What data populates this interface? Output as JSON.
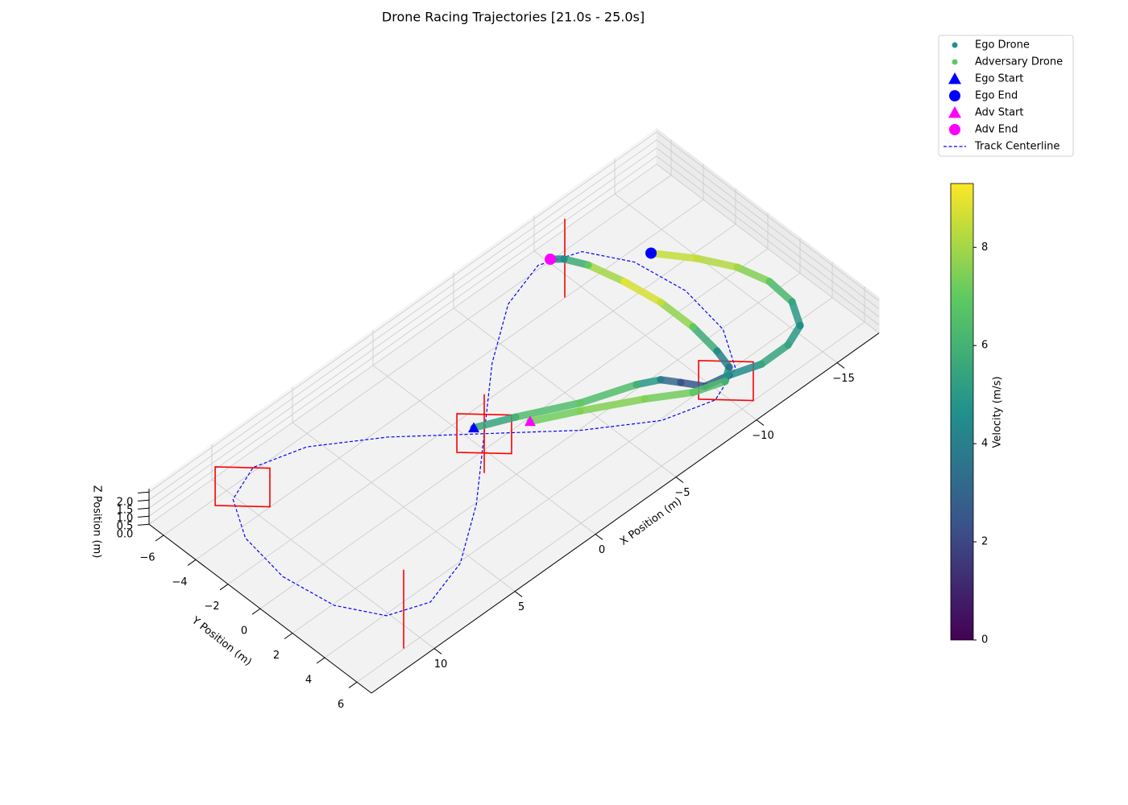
{
  "chart_data": {
    "type": "scatter3d",
    "title": "Drone Racing Trajectories [21.0s - 25.0s]",
    "xlabel": "X Position (m)",
    "ylabel": "Y Position (m)",
    "zlabel": "Z Position (m)",
    "xlim": [
      -17.6,
      13.9
    ],
    "ylim": [
      -6.9,
      6.9
    ],
    "zlim": [
      0,
      2.2
    ],
    "xticks": [
      {
        "value": -15,
        "label": "−15"
      },
      {
        "value": -10,
        "label": "−10"
      },
      {
        "value": -5,
        "label": "−5"
      },
      0,
      5,
      10
    ],
    "yticks": [
      {
        "value": -6,
        "label": "−6"
      },
      {
        "value": -4,
        "label": "−4"
      },
      {
        "value": -2,
        "label": "−2"
      },
      0,
      2,
      4,
      6
    ],
    "zticks": [
      {
        "value": 0,
        "label": "0.0"
      },
      {
        "value": 0.5,
        "label": "0.5"
      },
      {
        "value": 1,
        "label": "1.0"
      },
      {
        "value": 1.5,
        "label": "1.5"
      },
      {
        "value": 2,
        "label": "2.0"
      }
    ],
    "grid": true,
    "legend": "upper right",
    "series": [
      {
        "name": "Ego Drone",
        "color": "#21918c",
        "start": {
          "name": "Ego Start",
          "color": "#0000ff"
        },
        "end": {
          "name": "Ego End",
          "color": "#0000ff"
        },
        "x": [
          0.09,
          -1.71,
          -4.38,
          -6.96,
          -7.94,
          -8.47,
          -9.09,
          -10.33,
          -11.83,
          -13.49,
          -14.7,
          -15.45,
          -15.58,
          -15.15,
          -14.23,
          -12.98
        ],
        "y": [
          -0.56,
          0.24,
          1.58,
          2.49,
          3.01,
          3.73,
          4.62,
          4.87,
          5.37,
          5.36,
          4.9,
          3.65,
          2.12,
          0.55,
          -1.03,
          -2.63
        ],
        "z": [
          1,
          1,
          1,
          1,
          1,
          1,
          1,
          1,
          1,
          1,
          1,
          1,
          1,
          1,
          1,
          1
        ],
        "velocity": [
          5,
          6,
          7,
          6,
          4,
          2.5,
          2.5,
          3.5,
          5.5,
          5.5,
          4.5,
          5.5,
          7,
          8,
          8.5,
          8.5
        ]
      },
      {
        "name": "Adversary Drone",
        "color": "#5ec962",
        "start": {
          "name": "Adv Start",
          "color": "#ff00ff"
        },
        "end": {
          "name": "Adv End",
          "color": "#ff00ff"
        },
        "x": [
          -1.99,
          -4.04,
          -6.61,
          -8.44,
          -9.94,
          -10.67,
          -10.96,
          -11.21,
          -11.21,
          -10.92,
          -10.46,
          -9.94,
          -9.49
        ],
        "y": [
          0.86,
          1.91,
          3.34,
          4.51,
          5.01,
          4.53,
          3.49,
          1.74,
          -0.26,
          -2.22,
          -4.01,
          -4.99,
          -5.39
        ],
        "z": [
          1,
          1,
          1,
          1,
          1,
          1,
          1,
          1,
          1,
          1,
          1,
          1,
          1
        ],
        "velocity": [
          7,
          7.5,
          7.5,
          7,
          6,
          3.5,
          4.5,
          7,
          8.5,
          9,
          7,
          4.5,
          4
        ]
      }
    ],
    "centerline": {
      "name": "Track Centerline",
      "color": "#0000ff",
      "x": [
        12.5,
        12.07,
        10.83,
        8.84,
        6.25,
        3.24,
        0,
        -3.24,
        -6.25,
        -8.84,
        -10.83,
        -12.07,
        -12.5,
        -12.07,
        -10.83,
        -8.84,
        -6.25,
        -3.24,
        0,
        3.24,
        6.25,
        8.84,
        10.83,
        12.07,
        12.5
      ],
      "y": [
        0,
        2.75,
        4.76,
        5.5,
        4.76,
        2.75,
        0,
        -2.75,
        -4.76,
        -5.5,
        -4.76,
        -2.75,
        0,
        2.75,
        4.76,
        5.5,
        4.76,
        2.75,
        0,
        -2.75,
        -4.76,
        -5.5,
        -4.76,
        -2.75,
        0
      ],
      "z": [
        1,
        1,
        1,
        1,
        1,
        1,
        1,
        1,
        1,
        1,
        1,
        1,
        1,
        1,
        1,
        1,
        1,
        1,
        1,
        1,
        1,
        1,
        1,
        1,
        1
      ]
    },
    "gates": {
      "color": "#ff0000",
      "size": 2.4,
      "items": [
        {
          "x": 10,
          "y": -5,
          "z": 1,
          "yaw_deg": 135
        },
        {
          "x": 10,
          "y": 5,
          "z": 1,
          "yaw_deg": 45
        },
        {
          "x": 0,
          "y": 0,
          "z": 1,
          "yaw_deg": 135
        },
        {
          "x": 0,
          "y": 0,
          "z": 1,
          "yaw_deg": 45
        },
        {
          "x": -10,
          "y": 5,
          "z": 1,
          "yaw_deg": 135
        },
        {
          "x": -10,
          "y": -5,
          "z": 1,
          "yaw_deg": 45
        }
      ]
    },
    "colorbar": {
      "label": "Velocity (m/s)",
      "colormap": "viridis",
      "lim": [
        0,
        9.3
      ],
      "ticks": [
        0,
        2,
        4,
        6,
        8
      ]
    }
  }
}
